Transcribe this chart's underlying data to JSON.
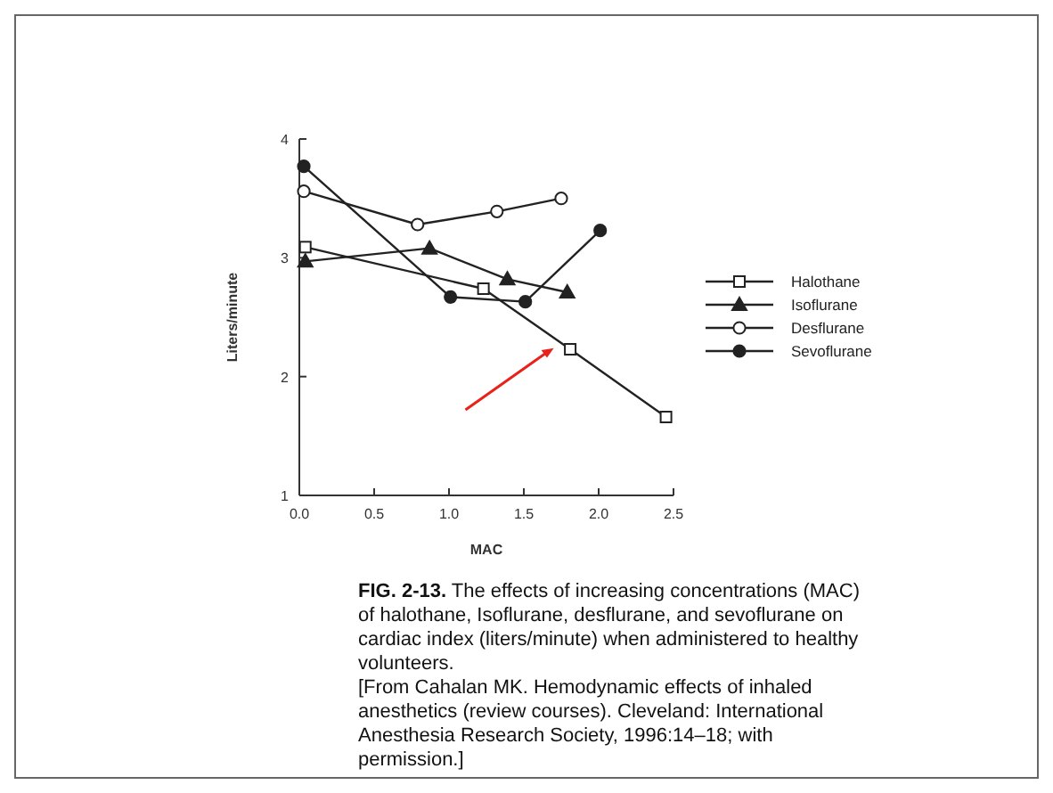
{
  "chart_data": {
    "type": "line",
    "xlabel": "MAC",
    "ylabel": "Liters/minute",
    "xlim": [
      0,
      2.5
    ],
    "xticks": [
      {
        "value": 0,
        "label": "0.0"
      },
      0.5,
      {
        "value": 1,
        "label": "1.0"
      },
      1.5,
      {
        "value": 2,
        "label": "2.0"
      },
      2.5
    ],
    "ylim": [
      1,
      4
    ],
    "yticks": [
      1,
      2,
      3,
      4
    ],
    "grid": false,
    "legend": "right",
    "series": [
      {
        "name": "Halothane",
        "color": "#222222",
        "marker": "square",
        "x": [
          0.04,
          1.23,
          1.81,
          2.45
        ],
        "values": [
          3.09,
          2.74,
          2.23,
          1.66
        ]
      },
      {
        "name": "Isoflurane",
        "color": "#222222",
        "marker": "triangle",
        "x": [
          0.04,
          0.87,
          1.39,
          1.79
        ],
        "values": [
          2.97,
          3.08,
          2.82,
          2.71
        ]
      },
      {
        "name": "Desflurane",
        "color": "#222222",
        "marker": "circle",
        "x": [
          0.03,
          0.79,
          1.32,
          1.75
        ],
        "values": [
          3.56,
          3.28,
          3.39,
          3.5
        ]
      },
      {
        "name": "Sevoflurane",
        "color": "#222222",
        "marker": "circle",
        "x": [
          0.03,
          1.01,
          1.51,
          2.01
        ],
        "values": [
          3.77,
          2.67,
          2.63,
          3.23
        ]
      }
    ],
    "annotations": [
      "FIG. 2-13.",
      "The effects of increasing concentrations (MAC) of halothane, Isoflurane, desflurane, and sevoflurane on cardiac index (liters/minute) when administered to healthy volunteers.",
      "[From Cahalan MK. Hemodynamic effects of inhaled anesthetics (review courses). Cleveland: International Anesthesia Research Society, 1996:14–18; with permission.]"
    ]
  }
}
